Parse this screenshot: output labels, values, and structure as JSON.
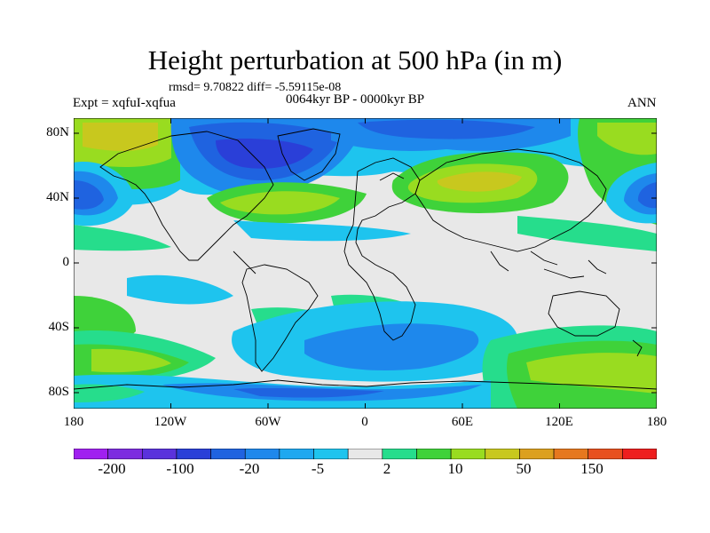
{
  "title": "Height perturbation at 500 hPa (in m)",
  "stats": "rmsd= 9.70822 diff= -5.59115e-08",
  "experiment": "Expt = xqfuI-xqfua",
  "period": "0064kyr BP - 0000kyr BP",
  "season": "ANN",
  "lat_labels": [
    "80N",
    "40N",
    "0",
    "40S",
    "80S"
  ],
  "lon_labels": [
    "180",
    "120W",
    "60W",
    "0",
    "60E",
    "120E",
    "180"
  ],
  "colorbar": {
    "labels": [
      "-200",
      "-100",
      "-20",
      "-5",
      "2",
      "10",
      "50",
      "150"
    ],
    "colors": [
      "#a020f0",
      "#7d2be0",
      "#5a32dc",
      "#2a3fd8",
      "#1f63e0",
      "#1e88ec",
      "#1ea8f0",
      "#1ec4ee",
      "#e8e8e8",
      "#26dd8c",
      "#3fd23a",
      "#99dc20",
      "#c8c81e",
      "#dca01e",
      "#e6781e",
      "#e8501e",
      "#ee1e1e"
    ]
  },
  "colors": {
    "background": "#e8e8e8",
    "land_outline": "#000000"
  }
}
